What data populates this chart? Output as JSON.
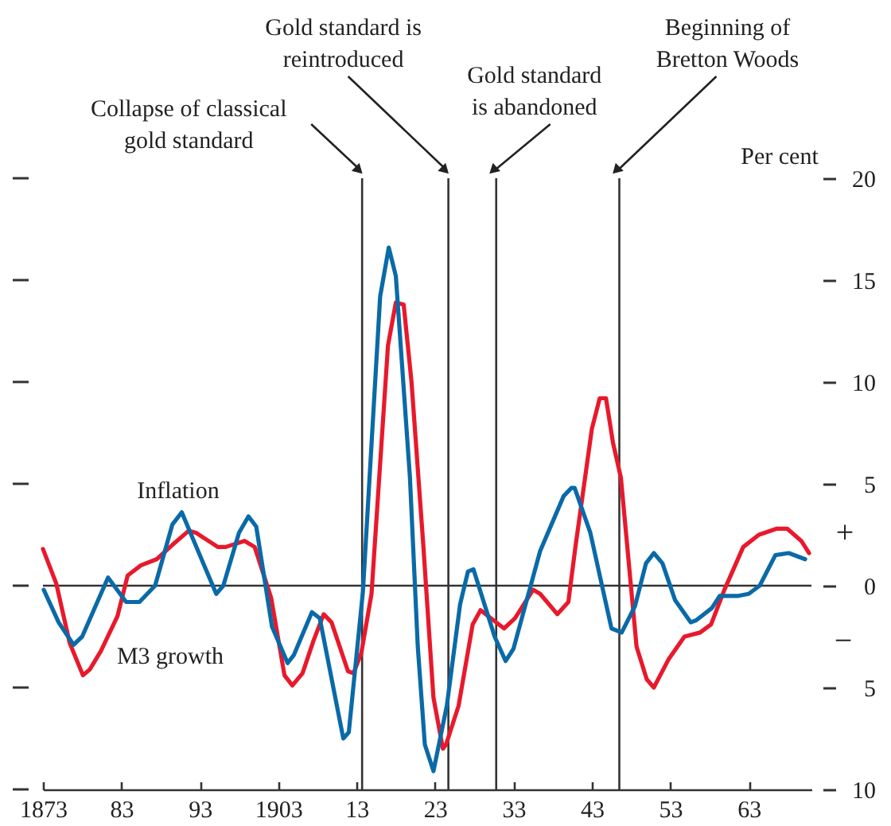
{
  "chart_data": {
    "type": "line",
    "ylabel": "Per cent",
    "xlim": [
      1873,
      1971
    ],
    "ylim": [
      -10,
      20
    ],
    "xticks": [
      1873,
      {
        "value": 1883,
        "label": "83"
      },
      {
        "value": 1893,
        "label": "93"
      },
      1903,
      {
        "value": 1913,
        "label": "13"
      },
      {
        "value": 1923,
        "label": "23"
      },
      {
        "value": 1933,
        "label": "33"
      },
      {
        "value": 1943,
        "label": "43"
      },
      {
        "value": 1953,
        "label": "53"
      },
      {
        "value": 1963,
        "label": "63"
      }
    ],
    "yticks": [
      {
        "value": -10,
        "label": "10"
      },
      {
        "value": -5,
        "label": "5"
      },
      0,
      5,
      10,
      15,
      20
    ],
    "grid": false,
    "legend": false,
    "marker": "none",
    "line_style": "solid",
    "series": [
      {
        "name": "M3 growth",
        "color": "#e8192c",
        "x": [
          1873,
          1874.7,
          1876.4,
          1878.1,
          1879,
          1880.4,
          1882.5,
          1883.8,
          1885.5,
          1887.5,
          1889.5,
          1891.6,
          1892.5,
          1895.3,
          1896.3,
          1898.7,
          1900,
          1902.1,
          1903.8,
          1904.8,
          1906.1,
          1907.5,
          1908.8,
          1909.8,
          1911.9,
          1912.6,
          1913.6,
          1914.9,
          1917,
          1918,
          1919,
          1920,
          1921.5,
          1922.8,
          1924,
          1924.4,
          1926,
          1927.8,
          1928.8,
          1931.8,
          1933.2,
          1935.5,
          1936.4,
          1938.6,
          1940,
          1940.9,
          1943,
          1944,
          1944.8,
          1945.7,
          1946.7,
          1948.7,
          1950,
          1950.9,
          1952.8,
          1954.8,
          1956.8,
          1958.2,
          1959.9,
          1962.3,
          1964.3,
          1966.6,
          1967.9,
          1969.7,
          1970.7
        ],
        "values": [
          1.8,
          0.1,
          -2.8,
          -4.4,
          -4.1,
          -3.2,
          -1.5,
          0.5,
          1.0,
          1.3,
          2.0,
          2.7,
          2.6,
          1.9,
          1.9,
          2.2,
          1.9,
          -0.6,
          -4.4,
          -4.9,
          -4.3,
          -2.7,
          -1.4,
          -1.8,
          -4.2,
          -4.3,
          -3.3,
          -0.4,
          11.8,
          13.9,
          13.8,
          10,
          2.0,
          -5.5,
          -8.0,
          -7.8,
          -5.9,
          -1.9,
          -1.2,
          -2.1,
          -1.6,
          -0.2,
          -0.4,
          -1.4,
          -0.8,
          1.9,
          7.7,
          9.2,
          9.2,
          7.0,
          5.3,
          -3.0,
          -4.6,
          -5.0,
          -3.6,
          -2.5,
          -2.3,
          -1.9,
          -0.2,
          1.9,
          2.5,
          2.8,
          2.8,
          2.2,
          1.6
        ]
      },
      {
        "name": "Inflation",
        "color": "#0a6aa8",
        "x": [
          1873.1,
          1875,
          1876.9,
          1878,
          1881.3,
          1883.6,
          1885.3,
          1887.3,
          1889.5,
          1890.7,
          1893,
          1895.1,
          1896,
          1898,
          1899.2,
          1900.2,
          1902.2,
          1904.2,
          1905,
          1907.3,
          1908.3,
          1911.3,
          1912,
          1913.8,
          1916,
          1917.1,
          1918,
          1919.8,
          1920.8,
          1921.7,
          1922.8,
          1924.5,
          1926.2,
          1927.2,
          1927.9,
          1930.6,
          1932,
          1933,
          1936.4,
          1939.4,
          1940.4,
          1940.8,
          1942.8,
          1945.5,
          1946.8,
          1948.5,
          1949.9,
          1950.9,
          1952,
          1953.6,
          1955.6,
          1956.3,
          1958.3,
          1959.3,
          1961.7,
          1963,
          1964.4,
          1966.4,
          1968.1,
          1970.2
        ],
        "values": [
          -0.2,
          -1.8,
          -2.9,
          -2.5,
          0.4,
          -0.8,
          -0.8,
          0,
          3.0,
          3.6,
          1.5,
          -0.4,
          0,
          2.6,
          3.4,
          2.9,
          -2.0,
          -3.8,
          -3.4,
          -1.3,
          -1.6,
          -7.5,
          -7.2,
          -0.3,
          14.2,
          16.6,
          15.2,
          5.3,
          -3.0,
          -7.8,
          -9.1,
          -5.9,
          -0.9,
          0.7,
          0.8,
          -2.5,
          -3.7,
          -3.1,
          1.7,
          4.4,
          4.8,
          4.8,
          2.6,
          -2.1,
          -2.3,
          -1.0,
          1.1,
          1.6,
          1.1,
          -0.7,
          -1.8,
          -1.7,
          -1.1,
          -0.5,
          -0.5,
          -0.4,
          0,
          1.5,
          1.6,
          1.3
        ]
      }
    ],
    "ref_lines": [
      {
        "axis": "y",
        "value": 0,
        "color": "#333333"
      },
      {
        "axis": "x",
        "value": 1913.7,
        "label": "Collapse of classical gold standard",
        "color": "#333333"
      },
      {
        "axis": "x",
        "value": 1924.7,
        "label": "Gold standard is reintroduced",
        "color": "#333333"
      },
      {
        "axis": "x",
        "value": 1930.8,
        "label": "Gold standard is abandoned",
        "color": "#333333"
      },
      {
        "axis": "x",
        "value": 1946.5,
        "label": "Beginning of Bretton Woods",
        "color": "#333333"
      }
    ],
    "annotations": [
      "+",
      "−"
    ]
  }
}
